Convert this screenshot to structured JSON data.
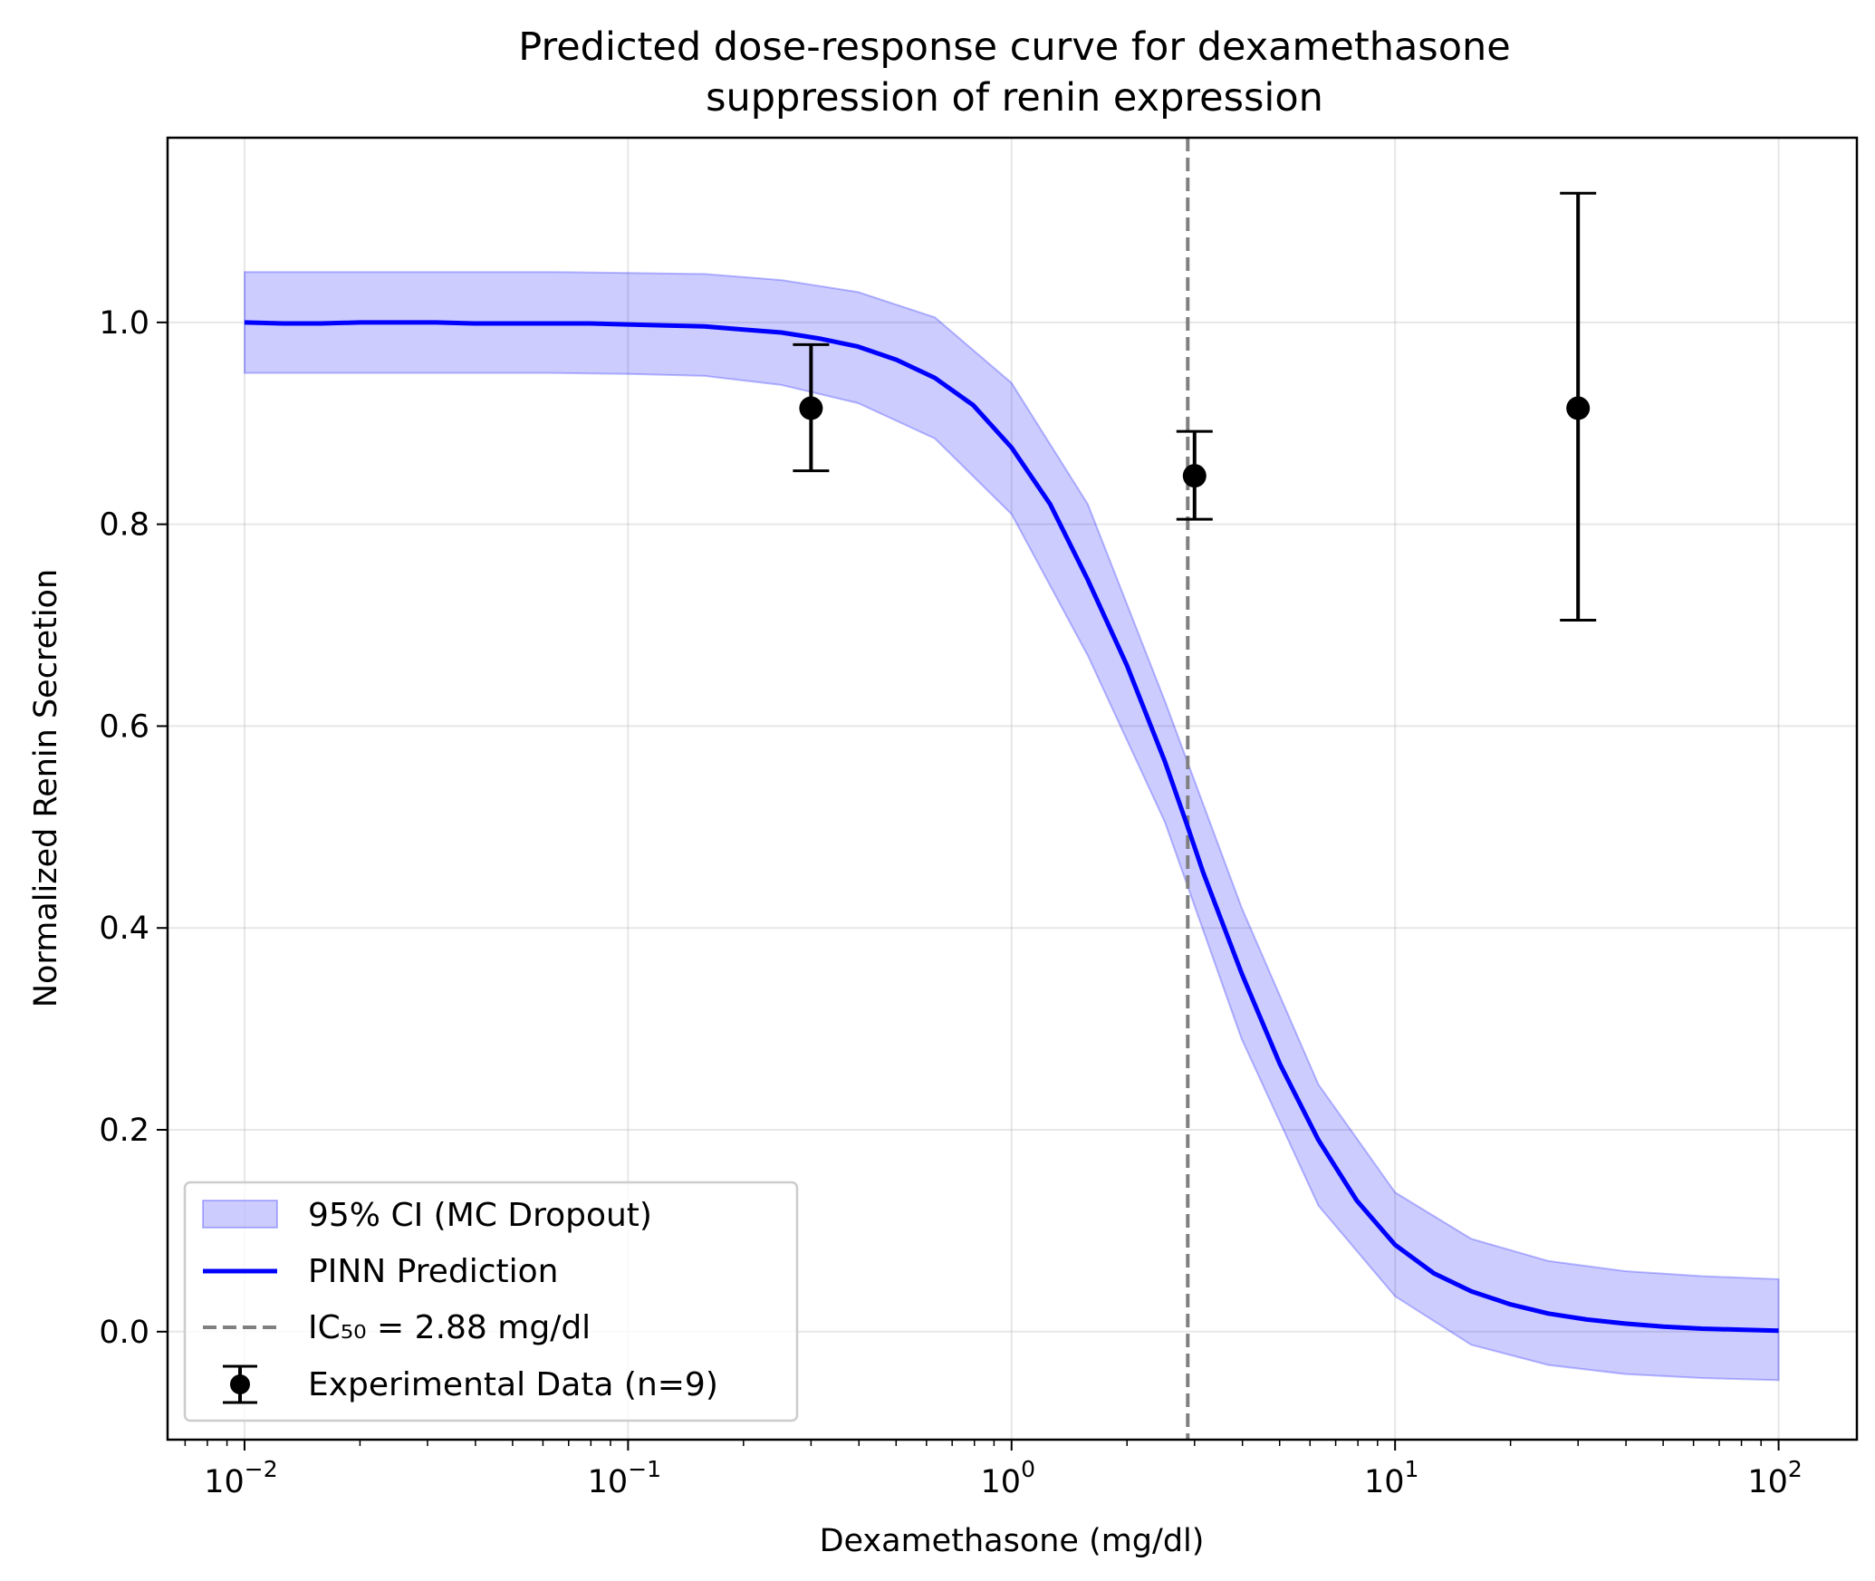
{
  "chart_data": {
    "type": "line",
    "title": [
      "Predicted dose-response curve for dexamethasone",
      "suppression of renin expression"
    ],
    "xlabel": "Dexamethasone (mg/dl)",
    "ylabel": "Normalized Renin Secretion",
    "xscale": "log",
    "xlim": [
      0.0063,
      160
    ],
    "ylim": [
      -0.107,
      1.183
    ],
    "x_ticks": [
      {
        "base": "10",
        "exp": "−2",
        "value": 0.01
      },
      {
        "base": "10",
        "exp": "−1",
        "value": 0.1
      },
      {
        "base": "10",
        "exp": "0",
        "value": 1
      },
      {
        "base": "10",
        "exp": "1",
        "value": 10
      },
      {
        "base": "10",
        "exp": "2",
        "value": 100
      }
    ],
    "y_ticks": [
      "0.0",
      "0.2",
      "0.4",
      "0.6",
      "0.8",
      "1.0"
    ],
    "grid": true,
    "legend_position": "lower-left",
    "ic50": 2.88,
    "series": [
      {
        "name": "PINN Prediction",
        "kind": "line",
        "color": "#0000ff",
        "x": [
          0.01,
          0.0126,
          0.0158,
          0.02,
          0.0251,
          0.0316,
          0.0398,
          0.0501,
          0.0631,
          0.0794,
          0.1,
          0.126,
          0.158,
          0.2,
          0.251,
          0.316,
          0.398,
          0.501,
          0.631,
          0.794,
          1.0,
          1.26,
          1.58,
          2.0,
          2.51,
          2.88,
          3.16,
          3.98,
          5.01,
          6.31,
          7.94,
          10.0,
          12.6,
          15.8,
          20.0,
          25.1,
          31.6,
          39.8,
          50.1,
          63.1,
          79.4,
          100.0
        ],
        "y": [
          1.0,
          0.999,
          0.999,
          1.0,
          1.0,
          1.0,
          0.999,
          0.999,
          0.999,
          0.999,
          0.998,
          0.997,
          0.996,
          0.993,
          0.99,
          0.984,
          0.976,
          0.963,
          0.945,
          0.918,
          0.876,
          0.82,
          0.745,
          0.66,
          0.565,
          0.5,
          0.455,
          0.355,
          0.265,
          0.19,
          0.13,
          0.086,
          0.058,
          0.04,
          0.027,
          0.018,
          0.012,
          0.008,
          0.005,
          0.003,
          0.002,
          0.001
        ]
      },
      {
        "name": "95% CI (MC Dropout)",
        "kind": "band",
        "color": "#0000ff",
        "x": [
          0.01,
          0.0251,
          0.0631,
          0.1,
          0.158,
          0.251,
          0.398,
          0.631,
          1.0,
          1.58,
          2.51,
          3.98,
          6.31,
          10.0,
          15.8,
          25.1,
          39.8,
          63.1,
          100.0
        ],
        "upper": [
          1.05,
          1.05,
          1.05,
          1.049,
          1.048,
          1.042,
          1.03,
          1.005,
          0.94,
          0.82,
          0.625,
          0.42,
          0.245,
          0.138,
          0.092,
          0.07,
          0.06,
          0.055,
          0.052
        ],
        "lower": [
          0.95,
          0.95,
          0.95,
          0.949,
          0.947,
          0.938,
          0.92,
          0.885,
          0.81,
          0.67,
          0.505,
          0.29,
          0.125,
          0.035,
          -0.013,
          -0.033,
          -0.042,
          -0.046,
          -0.048
        ]
      },
      {
        "name": "IC₅₀ = 2.88 mg/dl",
        "kind": "vline",
        "color": "#808080"
      },
      {
        "name": "Experimental Data (n=9)",
        "kind": "errorbar",
        "color": "#000000",
        "x": [
          0.3,
          3.0,
          30.0
        ],
        "y": [
          0.915,
          0.848,
          0.915
        ],
        "yerr_low": [
          0.853,
          0.805,
          0.705
        ],
        "yerr_high": [
          0.978,
          0.892,
          1.128
        ]
      }
    ]
  }
}
